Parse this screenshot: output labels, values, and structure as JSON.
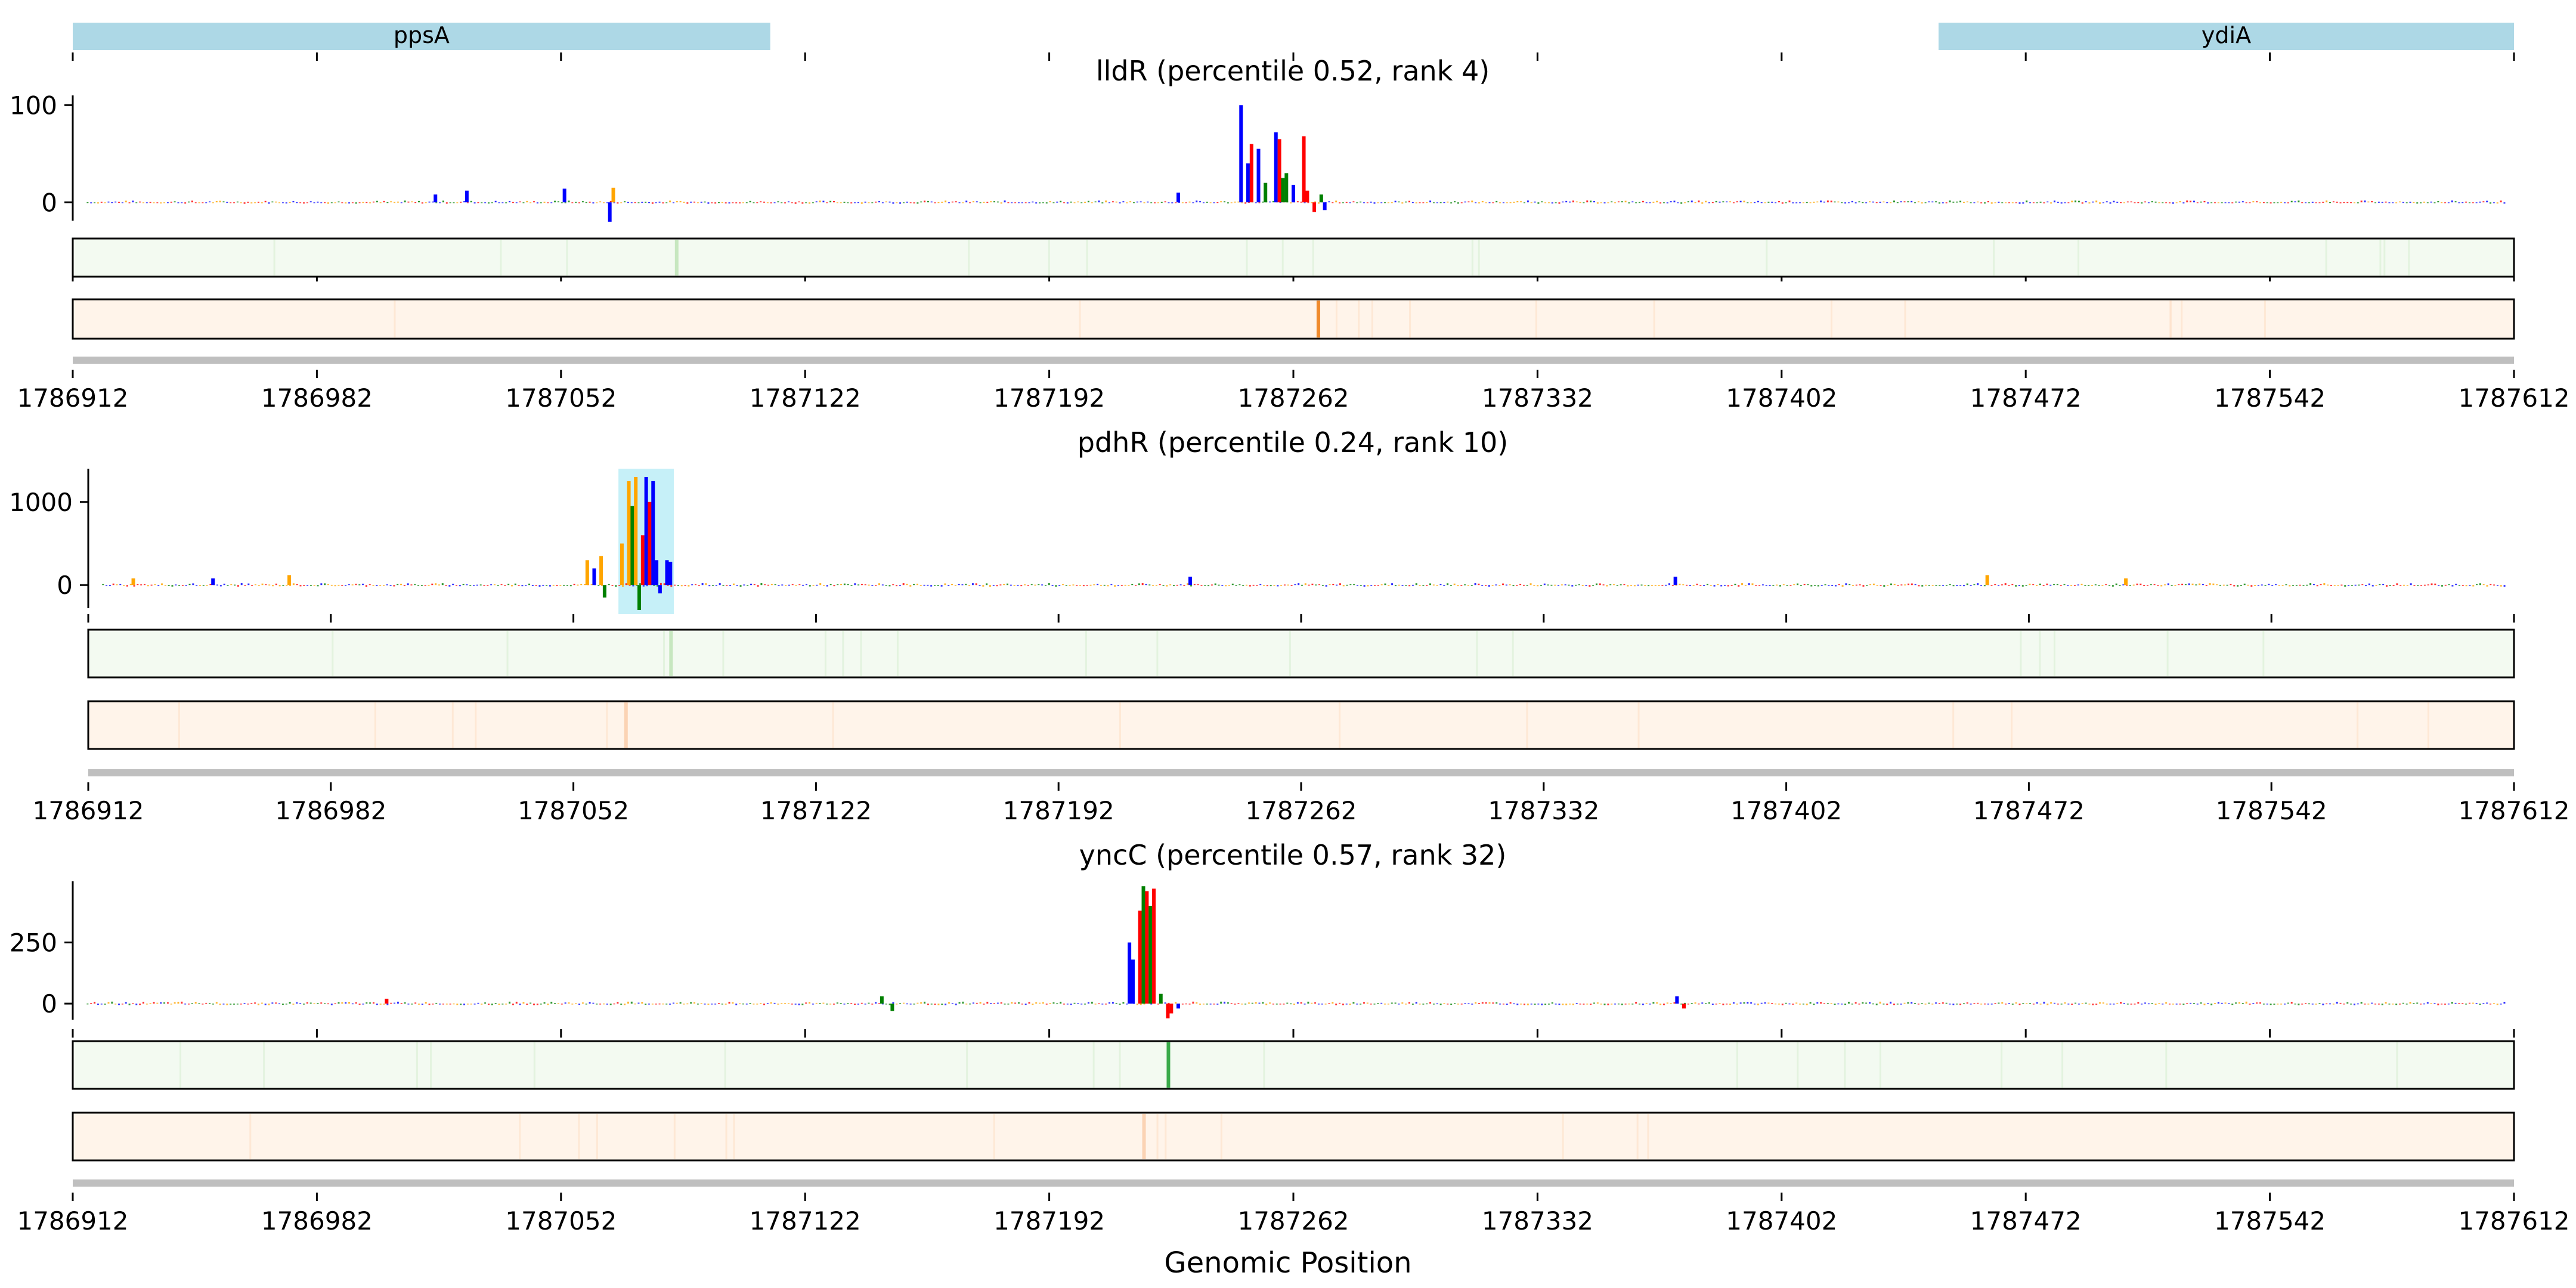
{
  "chart_data": {
    "type": "genome_track",
    "xlabel": "Genomic Position",
    "x_range": [
      1786912,
      1787612
    ],
    "x_ticks": [
      "1786912",
      "1786982",
      "1787052",
      "1787122",
      "1787192",
      "1787262",
      "1787332",
      "1787402",
      "1787472",
      "1787542",
      "1787612"
    ],
    "genes": [
      {
        "name": "ppsA",
        "start": 1786912,
        "end": 1787112
      },
      {
        "name": "ydiA",
        "start": 1787447,
        "end": 1787612
      }
    ],
    "panels": [
      {
        "title": "lldR (percentile 0.52, rank 4)",
        "y_ticks": [
          0,
          100
        ],
        "ylim": [
          -25,
          110
        ],
        "peak_position": 1787262,
        "highlight": null,
        "green_track_peak": 1787085,
        "orange_track_peak": 1787269,
        "logo_colors": [
          "#0000ff",
          "#ff0000",
          "#008000",
          "#ffa500"
        ],
        "motif": [
          {
            "pos": 1787247,
            "value": 100,
            "color": "#0000ff"
          },
          {
            "pos": 1787249,
            "value": 40,
            "color": "#0000ff"
          },
          {
            "pos": 1787250,
            "value": 60,
            "color": "#ff0000"
          },
          {
            "pos": 1787252,
            "value": 55,
            "color": "#0000ff"
          },
          {
            "pos": 1787254,
            "value": 20,
            "color": "#008000"
          },
          {
            "pos": 1787257,
            "value": 72,
            "color": "#0000ff"
          },
          {
            "pos": 1787258,
            "value": 65,
            "color": "#ff0000"
          },
          {
            "pos": 1787259,
            "value": 25,
            "color": "#008000"
          },
          {
            "pos": 1787260,
            "value": 30,
            "color": "#008000"
          },
          {
            "pos": 1787262,
            "value": 18,
            "color": "#0000ff"
          },
          {
            "pos": 1787265,
            "value": 68,
            "color": "#ff0000"
          },
          {
            "pos": 1787266,
            "value": 12,
            "color": "#ff0000"
          },
          {
            "pos": 1787268,
            "value": -10,
            "color": "#ff0000"
          },
          {
            "pos": 1787270,
            "value": 8,
            "color": "#008000"
          },
          {
            "pos": 1787229,
            "value": 10,
            "color": "#0000ff"
          },
          {
            "pos": 1787271,
            "value": -8,
            "color": "#0000ff"
          },
          {
            "pos": 1787066,
            "value": -20,
            "color": "#0000ff"
          },
          {
            "pos": 1787067,
            "value": 15,
            "color": "#ffa500"
          },
          {
            "pos": 1787053,
            "value": 14,
            "color": "#0000ff"
          },
          {
            "pos": 1787025,
            "value": 12,
            "color": "#0000ff"
          },
          {
            "pos": 1787016,
            "value": 8,
            "color": "#0000ff"
          }
        ]
      },
      {
        "title": "pdhR (percentile 0.24, rank 10)",
        "y_ticks": [
          0,
          1000
        ],
        "ylim": [
          -350,
          1400
        ],
        "peak_position": 1787080,
        "highlight": [
          1787065,
          1787081
        ],
        "green_track_peak": 1787080,
        "orange_track_peak": 1787067,
        "logo_colors": [
          "#0000ff",
          "#ff0000",
          "#008000",
          "#ffa500"
        ],
        "motif": [
          {
            "pos": 1787056,
            "value": 300,
            "color": "#ffa500"
          },
          {
            "pos": 1787058,
            "value": 200,
            "color": "#0000ff"
          },
          {
            "pos": 1787060,
            "value": 350,
            "color": "#ffa500"
          },
          {
            "pos": 1787061,
            "value": -150,
            "color": "#008000"
          },
          {
            "pos": 1787066,
            "value": 500,
            "color": "#ffa500"
          },
          {
            "pos": 1787068,
            "value": 1250,
            "color": "#ffa500"
          },
          {
            "pos": 1787069,
            "value": 950,
            "color": "#008000"
          },
          {
            "pos": 1787070,
            "value": 1300,
            "color": "#ffa500"
          },
          {
            "pos": 1787071,
            "value": -300,
            "color": "#008000"
          },
          {
            "pos": 1787072,
            "value": 600,
            "color": "#ff0000"
          },
          {
            "pos": 1787073,
            "value": 1300,
            "color": "#0000ff"
          },
          {
            "pos": 1787074,
            "value": 1000,
            "color": "#ff0000"
          },
          {
            "pos": 1787075,
            "value": 1250,
            "color": "#0000ff"
          },
          {
            "pos": 1787076,
            "value": 300,
            "color": "#0000ff"
          },
          {
            "pos": 1787077,
            "value": -100,
            "color": "#0000ff"
          },
          {
            "pos": 1787079,
            "value": 300,
            "color": "#0000ff"
          },
          {
            "pos": 1787080,
            "value": 280,
            "color": "#0000ff"
          },
          {
            "pos": 1786925,
            "value": 80,
            "color": "#ffa500"
          },
          {
            "pos": 1786948,
            "value": 80,
            "color": "#0000ff"
          },
          {
            "pos": 1786970,
            "value": 120,
            "color": "#ffa500"
          },
          {
            "pos": 1787230,
            "value": 100,
            "color": "#0000ff"
          },
          {
            "pos": 1787370,
            "value": 100,
            "color": "#0000ff"
          },
          {
            "pos": 1787460,
            "value": 120,
            "color": "#ffa500"
          },
          {
            "pos": 1787500,
            "value": 80,
            "color": "#ffa500"
          }
        ]
      },
      {
        "title": "yncC (percentile 0.57, rank 32)",
        "y_ticks": [
          0,
          250
        ],
        "ylim": [
          -90,
          500
        ],
        "peak_position": 1787226,
        "highlight": null,
        "green_track_peak": 1787226,
        "orange_track_peak": 1787219,
        "logo_colors": [
          "#0000ff",
          "#ff0000",
          "#008000",
          "#ffa500"
        ],
        "motif": [
          {
            "pos": 1787215,
            "value": 250,
            "color": "#0000ff"
          },
          {
            "pos": 1787216,
            "value": 180,
            "color": "#0000ff"
          },
          {
            "pos": 1787218,
            "value": 380,
            "color": "#ff0000"
          },
          {
            "pos": 1787219,
            "value": 480,
            "color": "#008000"
          },
          {
            "pos": 1787220,
            "value": 460,
            "color": "#ff0000"
          },
          {
            "pos": 1787221,
            "value": 400,
            "color": "#008000"
          },
          {
            "pos": 1787222,
            "value": 470,
            "color": "#ff0000"
          },
          {
            "pos": 1787224,
            "value": 40,
            "color": "#008000"
          },
          {
            "pos": 1787226,
            "value": -60,
            "color": "#ff0000"
          },
          {
            "pos": 1787227,
            "value": -40,
            "color": "#ff0000"
          },
          {
            "pos": 1787229,
            "value": -20,
            "color": "#0000ff"
          },
          {
            "pos": 1787002,
            "value": 20,
            "color": "#ff0000"
          },
          {
            "pos": 1787144,
            "value": 30,
            "color": "#008000"
          },
          {
            "pos": 1787147,
            "value": -30,
            "color": "#008000"
          },
          {
            "pos": 1787372,
            "value": 30,
            "color": "#0000ff"
          },
          {
            "pos": 1787374,
            "value": -20,
            "color": "#ff0000"
          }
        ]
      }
    ]
  }
}
